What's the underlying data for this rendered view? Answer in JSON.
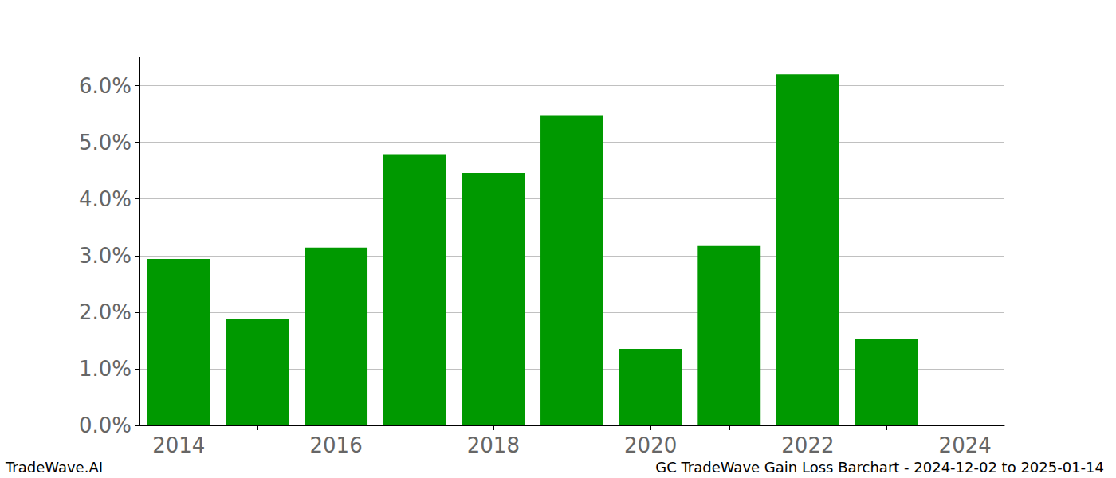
{
  "chart_data": {
    "type": "bar",
    "categories": [
      "2014",
      null,
      "2016",
      null,
      "2018",
      null,
      "2020",
      null,
      "2022",
      null,
      "2024"
    ],
    "values": [
      2.94,
      1.87,
      3.14,
      4.79,
      4.46,
      5.48,
      1.35,
      3.17,
      6.2,
      1.52,
      null
    ],
    "color": "#009900",
    "ylim": [
      0,
      6.5
    ],
    "yticks": [
      {
        "value": 0,
        "label": "0.0%"
      },
      {
        "value": 1,
        "label": "1.0%"
      },
      {
        "value": 2,
        "label": "2.0%"
      },
      {
        "value": 3,
        "label": "3.0%"
      },
      {
        "value": 4,
        "label": "4.0%"
      },
      {
        "value": 5,
        "label": "5.0%"
      },
      {
        "value": 6,
        "label": "6.0%"
      }
    ],
    "grid": true,
    "annotations": [
      "TradeWave.AI",
      "GC TradeWave Gain Loss Barchart - 2024-12-02 to 2025-01-14"
    ]
  }
}
